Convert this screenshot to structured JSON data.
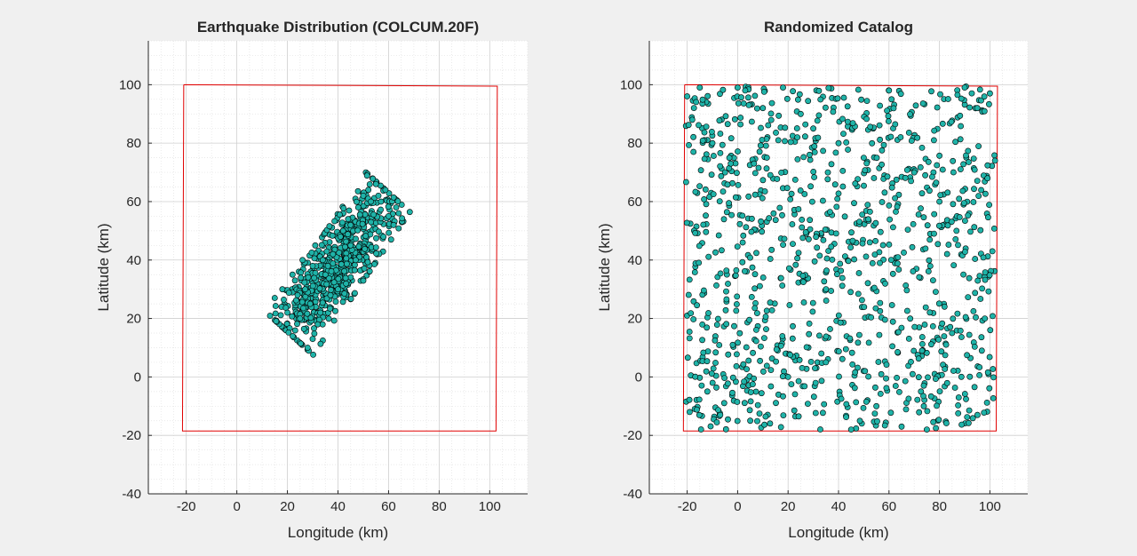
{
  "colors": {
    "background": "#f0f0f0",
    "axes_background": "#ffffff",
    "marker_fill": "#1fb3a8",
    "marker_edge": "#000000",
    "boundary": "#e00000",
    "grid_major": "#cfcfcf",
    "grid_minor": "#e2e2e2",
    "axis_line": "#262626",
    "text": "#262626"
  },
  "chart_data": [
    {
      "type": "scatter",
      "title": "Earthquake Distribution (COLCUM.20F)",
      "xlabel": "Longitude (km)",
      "ylabel": "Latitude (km)",
      "xlim": [
        -35,
        115
      ],
      "ylim": [
        -40,
        115
      ],
      "xticks": [
        -20,
        0,
        20,
        40,
        60,
        80,
        100
      ],
      "yticks": [
        -40,
        -20,
        0,
        20,
        40,
        60,
        80,
        100
      ],
      "grid": "on",
      "minor_grid": "on",
      "boundary": {
        "x": [
          -21,
          103,
          102.5,
          -21.5,
          -21
        ],
        "y": [
          100,
          99.5,
          -18.5,
          -18.5,
          100
        ]
      },
      "distribution": {
        "kind": "elongated-cluster",
        "count": 650,
        "center": [
          40,
          38
        ],
        "long_axis_spread": 17,
        "short_axis_spread": 5.5,
        "orientation_deg": 52
      },
      "x": [
        15,
        20,
        18,
        25,
        30,
        28,
        32,
        35,
        38,
        42,
        45,
        48,
        50,
        55,
        52,
        57,
        60,
        63,
        64,
        58,
        62,
        30,
        29,
        31,
        26,
        23,
        45,
        47,
        40,
        37,
        33,
        36,
        41,
        53,
        56,
        22,
        24,
        27,
        34,
        44
      ],
      "y": [
        27,
        22,
        30,
        20,
        13,
        10,
        18,
        35,
        42,
        50,
        52,
        58,
        62,
        66,
        64,
        60,
        55,
        58,
        56,
        48,
        52,
        38,
        25,
        45,
        40,
        33,
        45,
        40,
        30,
        28,
        22,
        38,
        48,
        60,
        62,
        35,
        28,
        30,
        40,
        54
      ]
    },
    {
      "type": "scatter",
      "title": "Randomized Catalog",
      "xlabel": "Longitude (km)",
      "ylabel": "Latitude (km)",
      "xlim": [
        -35,
        115
      ],
      "ylim": [
        -40,
        115
      ],
      "xticks": [
        -20,
        0,
        20,
        40,
        60,
        80,
        100
      ],
      "yticks": [
        -40,
        -20,
        0,
        20,
        40,
        60,
        80,
        100
      ],
      "grid": "on",
      "minor_grid": "on",
      "boundary": {
        "x": [
          -21,
          103,
          102.5,
          -21.5,
          -21
        ],
        "y": [
          100,
          99.5,
          -18.5,
          -18.5,
          100
        ]
      },
      "distribution": {
        "kind": "uniform",
        "count": 1050,
        "xrange": [
          -20.5,
          102
        ],
        "yrange": [
          -18,
          99.5
        ]
      },
      "x": [
        -20,
        -18,
        -15,
        -10,
        -5,
        0,
        3,
        10,
        18,
        25,
        30,
        40,
        50,
        60,
        70,
        80,
        90,
        95,
        100,
        102,
        101,
        98,
        85,
        75,
        65,
        55,
        45,
        35,
        20,
        5,
        -12,
        -19
      ],
      "y": [
        96,
        88,
        99,
        80,
        70,
        99,
        98,
        92,
        99,
        90,
        85,
        80,
        75,
        98,
        70,
        60,
        99,
        92,
        97,
        74,
        43,
        20,
        15,
        -18,
        -17,
        -10,
        -18,
        5,
        0,
        -15,
        -5,
        -12
      ]
    }
  ]
}
